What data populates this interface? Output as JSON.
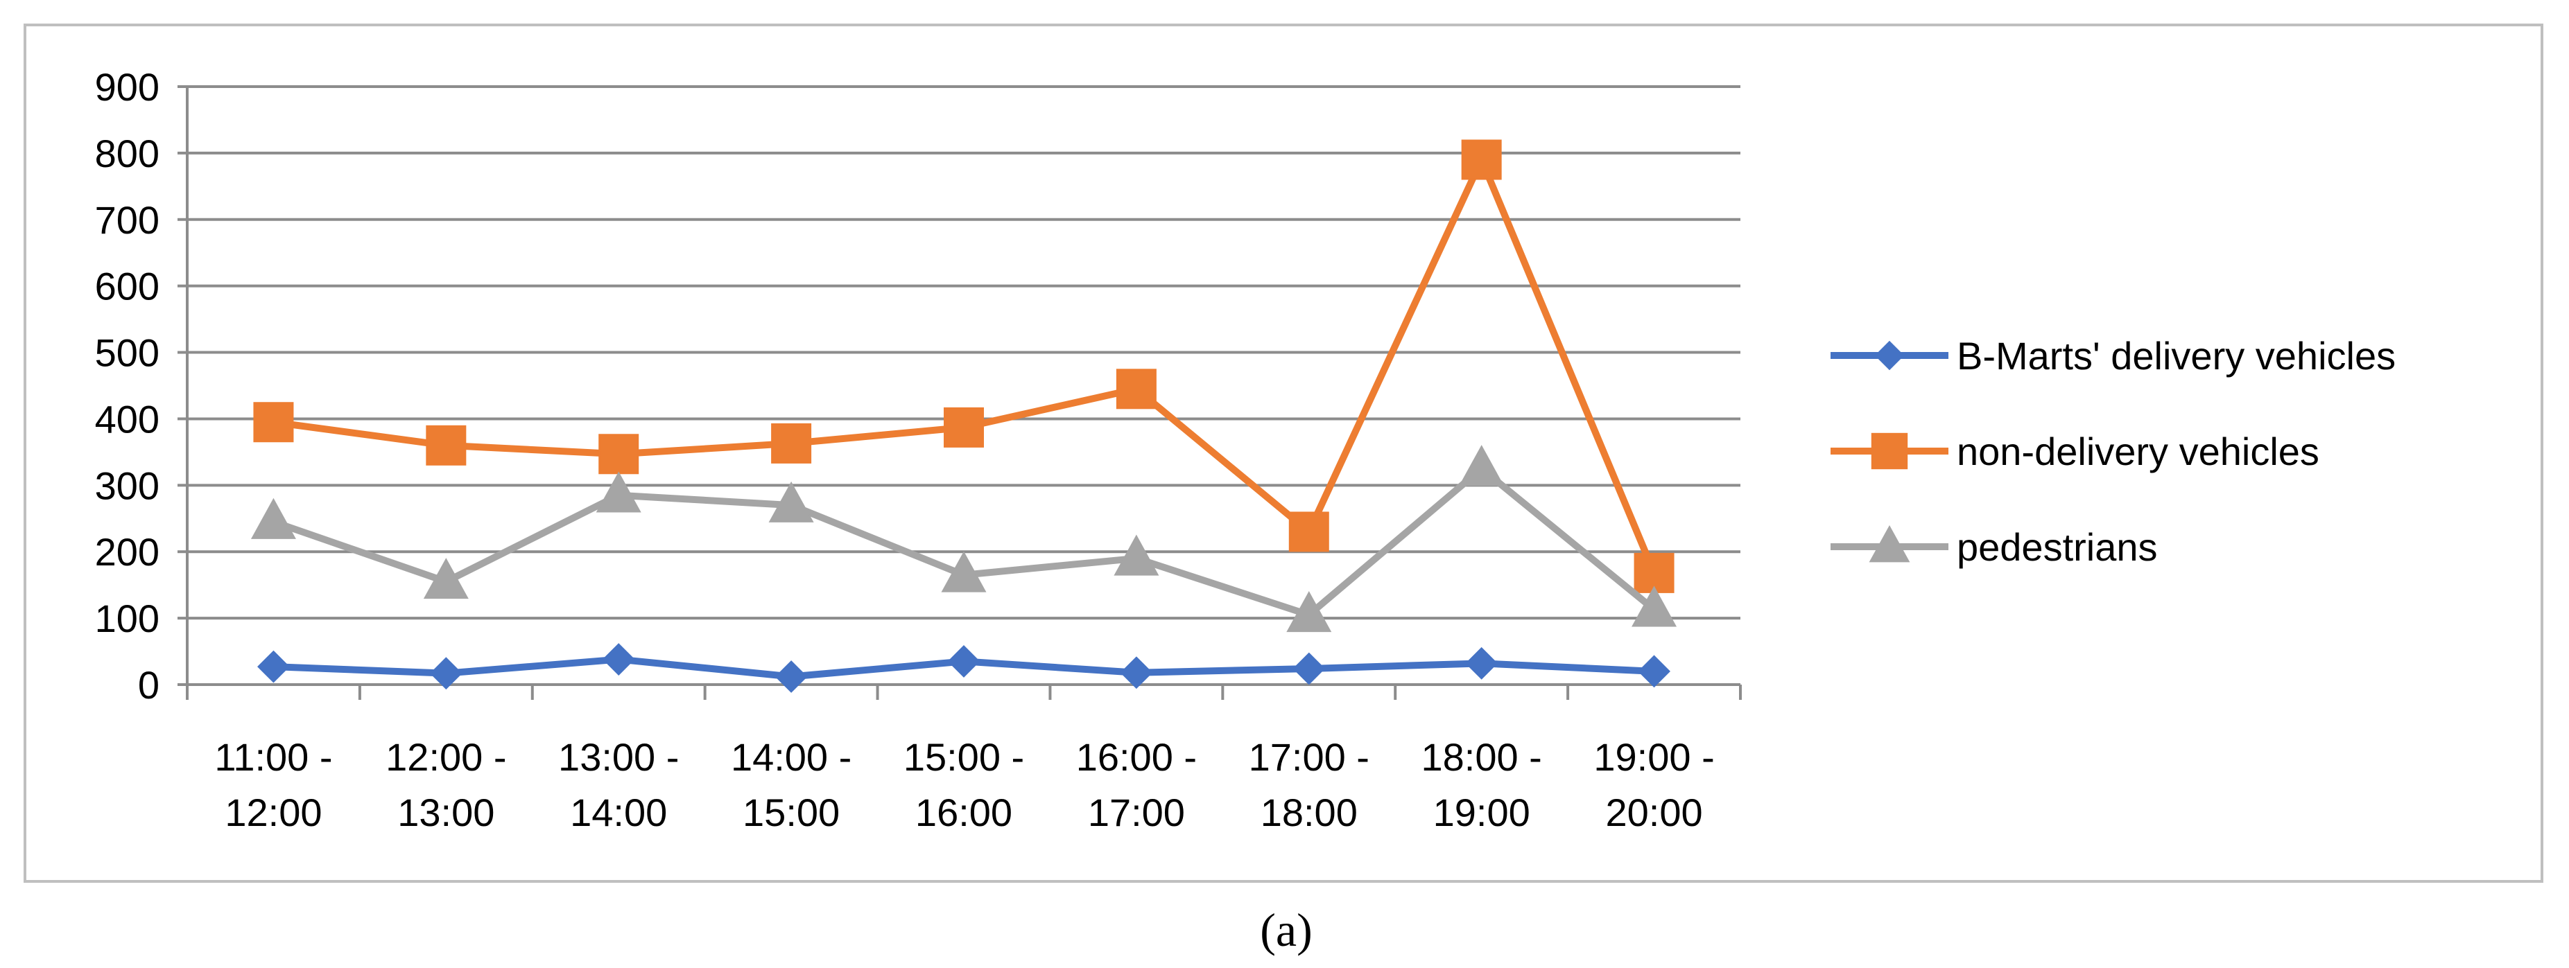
{
  "caption": "(a)",
  "chart_data": {
    "type": "line",
    "title": "",
    "xlabel": "",
    "ylabel": "",
    "ylim": [
      0,
      900
    ],
    "yticks": [
      0,
      100,
      200,
      300,
      400,
      500,
      600,
      700,
      800,
      900
    ],
    "grid": true,
    "legend_position": "right",
    "categories": [
      [
        "11:00 -",
        "12:00"
      ],
      [
        "12:00 -",
        "13:00"
      ],
      [
        "13:00 -",
        "14:00"
      ],
      [
        "14:00 -",
        "15:00"
      ],
      [
        "15:00 -",
        "16:00"
      ],
      [
        "16:00 -",
        "17:00"
      ],
      [
        "17:00 -",
        "18:00"
      ],
      [
        "18:00 -",
        "19:00"
      ],
      [
        "19:00 -",
        "20:00"
      ]
    ],
    "series": [
      {
        "name": "B-Marts' delivery vehicles",
        "color": "#4472C4",
        "marker": "diamond",
        "values": [
          27,
          17,
          38,
          12,
          35,
          18,
          24,
          32,
          20
        ]
      },
      {
        "name": "non-delivery vehicles",
        "color": "#ED7D31",
        "marker": "square",
        "values": [
          395,
          360,
          347,
          363,
          387,
          445,
          230,
          790,
          168
        ]
      },
      {
        "name": "pedestrians",
        "color": "#A5A5A5",
        "marker": "triangle",
        "values": [
          245,
          155,
          285,
          270,
          165,
          190,
          105,
          325,
          113
        ]
      }
    ]
  }
}
